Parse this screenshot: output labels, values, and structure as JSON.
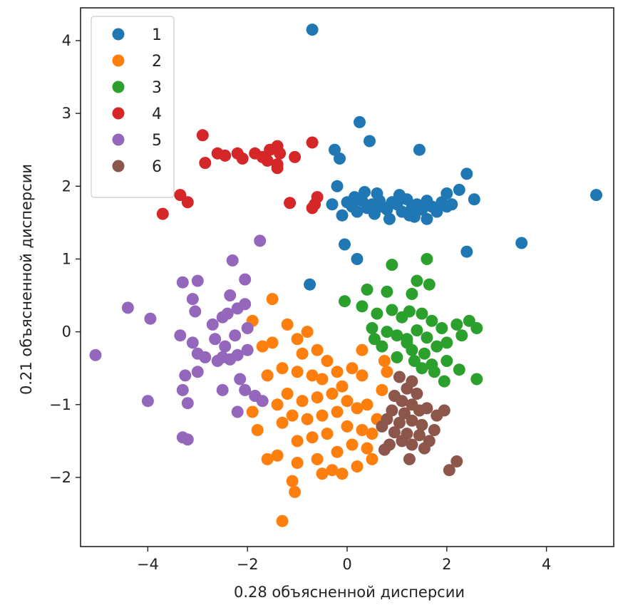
{
  "chart_data": {
    "type": "scatter",
    "title": "",
    "xlabel": "0.28    объясненной дисперсии",
    "ylabel": "0.21    объясненной дисперсии",
    "xlim": [
      -5.35,
      5.35
    ],
    "ylim": [
      -2.95,
      4.45
    ],
    "x_ticks": [
      -4,
      -2,
      0,
      2,
      4
    ],
    "x_tick_labels": [
      "−4",
      "−2",
      "0",
      "2",
      "4"
    ],
    "y_ticks": [
      -2,
      -1,
      0,
      1,
      2,
      3,
      4
    ],
    "y_tick_labels": [
      "−2",
      "−1",
      "0",
      "1",
      "2",
      "3",
      "4"
    ],
    "grid": false,
    "legend_position": "top-left",
    "series": [
      {
        "name": "1",
        "color": "#1f77b4",
        "points": [
          [
            -0.7,
            4.15
          ],
          [
            0.25,
            2.88
          ],
          [
            0.45,
            2.62
          ],
          [
            1.45,
            2.5
          ],
          [
            -0.25,
            2.5
          ],
          [
            -0.15,
            2.38
          ],
          [
            2.4,
            2.17
          ],
          [
            -0.2,
            2.0
          ],
          [
            -0.3,
            1.75
          ],
          [
            0.0,
            1.78
          ],
          [
            0.1,
            1.72
          ],
          [
            0.2,
            1.65
          ],
          [
            0.3,
            1.8
          ],
          [
            0.4,
            1.7
          ],
          [
            0.5,
            1.75
          ],
          [
            0.6,
            1.9
          ],
          [
            0.7,
            1.72
          ],
          [
            0.8,
            1.68
          ],
          [
            0.9,
            1.78
          ],
          [
            1.0,
            1.75
          ],
          [
            1.1,
            1.65
          ],
          [
            1.2,
            1.82
          ],
          [
            1.3,
            1.7
          ],
          [
            1.4,
            1.75
          ],
          [
            1.5,
            1.68
          ],
          [
            1.6,
            1.8
          ],
          [
            1.7,
            1.72
          ],
          [
            1.8,
            1.65
          ],
          [
            1.9,
            1.78
          ],
          [
            2.0,
            1.9
          ],
          [
            2.1,
            1.75
          ],
          [
            0.15,
            1.85
          ],
          [
            0.55,
            1.62
          ],
          [
            1.35,
            1.58
          ],
          [
            1.05,
            1.88
          ],
          [
            2.25,
            1.95
          ],
          [
            2.55,
            1.82
          ],
          [
            2.0,
            1.72
          ],
          [
            -0.1,
            1.6
          ],
          [
            0.35,
            1.92
          ],
          [
            0.85,
            1.55
          ],
          [
            1.25,
            1.6
          ],
          [
            1.6,
            1.55
          ],
          [
            0.65,
            1.8
          ],
          [
            3.5,
            1.22
          ],
          [
            5.0,
            1.88
          ],
          [
            2.4,
            1.1
          ],
          [
            -0.05,
            1.2
          ],
          [
            0.2,
            1.0
          ],
          [
            -0.75,
            0.65
          ]
        ]
      },
      {
        "name": "2",
        "color": "#ff7f0e",
        "points": [
          [
            -1.5,
            0.45
          ],
          [
            -1.9,
            0.15
          ],
          [
            -1.2,
            0.1
          ],
          [
            -0.8,
            0.0
          ],
          [
            -1.0,
            -0.1
          ],
          [
            -1.5,
            -0.15
          ],
          [
            -1.7,
            -0.2
          ],
          [
            -0.6,
            -0.25
          ],
          [
            -0.4,
            -0.4
          ],
          [
            -1.3,
            -0.5
          ],
          [
            -1.0,
            -0.55
          ],
          [
            -0.7,
            -0.6
          ],
          [
            -0.5,
            -0.65
          ],
          [
            -0.2,
            -0.55
          ],
          [
            0.1,
            -0.5
          ],
          [
            0.3,
            -0.6
          ],
          [
            -0.1,
            -0.75
          ],
          [
            -0.3,
            -0.85
          ],
          [
            -0.6,
            -0.9
          ],
          [
            -0.9,
            -0.95
          ],
          [
            -1.2,
            -0.85
          ],
          [
            -1.4,
            -1.0
          ],
          [
            0.0,
            -0.95
          ],
          [
            0.2,
            -1.05
          ],
          [
            0.4,
            -1.0
          ],
          [
            -0.2,
            -1.1
          ],
          [
            -0.5,
            -1.15
          ],
          [
            -0.8,
            -1.2
          ],
          [
            -1.1,
            -1.15
          ],
          [
            -1.3,
            -1.25
          ],
          [
            0.0,
            -1.3
          ],
          [
            0.3,
            -1.35
          ],
          [
            0.6,
            -1.2
          ],
          [
            -0.4,
            -1.4
          ],
          [
            -0.7,
            -1.45
          ],
          [
            -1.0,
            -1.5
          ],
          [
            0.1,
            -1.55
          ],
          [
            0.4,
            -1.6
          ],
          [
            -0.2,
            -1.65
          ],
          [
            -0.6,
            -1.75
          ],
          [
            -1.0,
            -1.8
          ],
          [
            -1.6,
            -1.75
          ],
          [
            -1.4,
            -1.7
          ],
          [
            -0.3,
            -1.9
          ],
          [
            0.2,
            -1.85
          ],
          [
            -0.1,
            -1.95
          ],
          [
            0.5,
            -1.75
          ],
          [
            -1.8,
            -1.35
          ],
          [
            -1.9,
            -1.1
          ],
          [
            -0.5,
            -1.95
          ],
          [
            -1.1,
            -2.05
          ],
          [
            -1.05,
            -2.2
          ],
          [
            -1.3,
            -2.6
          ],
          [
            0.8,
            -0.55
          ],
          [
            0.7,
            -0.8
          ],
          [
            0.5,
            -1.4
          ],
          [
            0.75,
            -0.4
          ],
          [
            0.3,
            -0.25
          ],
          [
            -0.9,
            -0.3
          ],
          [
            -1.6,
            -0.6
          ]
        ]
      },
      {
        "name": "3",
        "color": "#2ca02c",
        "points": [
          [
            1.6,
            1.0
          ],
          [
            0.9,
            0.92
          ],
          [
            1.4,
            0.7
          ],
          [
            0.4,
            0.58
          ],
          [
            0.8,
            0.55
          ],
          [
            1.3,
            0.52
          ],
          [
            1.65,
            0.65
          ],
          [
            -0.05,
            0.42
          ],
          [
            0.3,
            0.35
          ],
          [
            0.6,
            0.25
          ],
          [
            0.9,
            0.3
          ],
          [
            1.1,
            0.2
          ],
          [
            1.25,
            0.28
          ],
          [
            1.5,
            0.25
          ],
          [
            1.7,
            0.15
          ],
          [
            2.2,
            0.1
          ],
          [
            2.45,
            0.15
          ],
          [
            0.5,
            0.05
          ],
          [
            0.8,
            0.0
          ],
          [
            1.0,
            -0.05
          ],
          [
            1.2,
            -0.1
          ],
          [
            1.4,
            0.02
          ],
          [
            1.6,
            -0.08
          ],
          [
            1.9,
            0.05
          ],
          [
            2.0,
            -0.15
          ],
          [
            2.3,
            -0.05
          ],
          [
            2.6,
            0.05
          ],
          [
            0.7,
            -0.2
          ],
          [
            1.3,
            -0.25
          ],
          [
            1.55,
            -0.3
          ],
          [
            1.8,
            -0.2
          ],
          [
            1.0,
            -0.35
          ],
          [
            1.35,
            -0.4
          ],
          [
            1.7,
            -0.45
          ],
          [
            1.5,
            -0.5
          ],
          [
            1.75,
            -0.55
          ],
          [
            2.0,
            -0.4
          ],
          [
            2.25,
            -0.52
          ],
          [
            1.95,
            -0.68
          ],
          [
            2.6,
            -0.65
          ],
          [
            1.2,
            -0.15
          ],
          [
            0.55,
            -0.1
          ]
        ]
      },
      {
        "name": "4",
        "color": "#d62728",
        "points": [
          [
            -2.9,
            2.7
          ],
          [
            -0.7,
            2.6
          ],
          [
            -2.6,
            2.45
          ],
          [
            -2.45,
            2.42
          ],
          [
            -2.2,
            2.45
          ],
          [
            -2.1,
            2.38
          ],
          [
            -1.85,
            2.45
          ],
          [
            -1.7,
            2.4
          ],
          [
            -1.55,
            2.5
          ],
          [
            -1.4,
            2.55
          ],
          [
            -1.35,
            2.45
          ],
          [
            -1.6,
            2.35
          ],
          [
            -1.4,
            2.3
          ],
          [
            -1.05,
            2.4
          ],
          [
            -2.85,
            2.32
          ],
          [
            -1.4,
            2.25
          ],
          [
            -3.35,
            1.88
          ],
          [
            -3.2,
            1.78
          ],
          [
            -0.6,
            1.85
          ],
          [
            -0.65,
            1.75
          ],
          [
            -1.15,
            1.77
          ],
          [
            -0.7,
            1.7
          ],
          [
            -3.7,
            1.62
          ]
        ]
      },
      {
        "name": "5",
        "color": "#9467bd",
        "points": [
          [
            -1.75,
            1.25
          ],
          [
            -2.3,
            0.98
          ],
          [
            -2.05,
            0.72
          ],
          [
            -3.3,
            0.68
          ],
          [
            -3.0,
            0.7
          ],
          [
            -2.35,
            0.5
          ],
          [
            -2.05,
            0.38
          ],
          [
            -3.1,
            0.45
          ],
          [
            -2.2,
            0.32
          ],
          [
            -2.4,
            0.25
          ],
          [
            -3.05,
            0.28
          ],
          [
            -4.4,
            0.33
          ],
          [
            -3.95,
            0.18
          ],
          [
            -2.5,
            0.2
          ],
          [
            -2.7,
            0.1
          ],
          [
            -2.0,
            0.05
          ],
          [
            -3.35,
            -0.05
          ],
          [
            -2.25,
            -0.05
          ],
          [
            -2.65,
            -0.1
          ],
          [
            -3.1,
            -0.15
          ],
          [
            -2.45,
            -0.2
          ],
          [
            -2.0,
            -0.25
          ],
          [
            -3.0,
            -0.3
          ],
          [
            -2.2,
            -0.32
          ],
          [
            -2.85,
            -0.35
          ],
          [
            -2.5,
            -0.35
          ],
          [
            -5.05,
            -0.32
          ],
          [
            -2.35,
            -0.38
          ],
          [
            -2.6,
            -0.4
          ],
          [
            -3.0,
            -0.55
          ],
          [
            -3.25,
            -0.6
          ],
          [
            -2.15,
            -0.65
          ],
          [
            -2.05,
            -0.8
          ],
          [
            -1.85,
            -0.88
          ],
          [
            -2.5,
            -0.8
          ],
          [
            -3.3,
            -0.8
          ],
          [
            -4.0,
            -0.95
          ],
          [
            -3.2,
            -0.98
          ],
          [
            -1.7,
            -0.95
          ],
          [
            -2.2,
            -1.1
          ],
          [
            -3.3,
            -1.45
          ],
          [
            -3.2,
            -1.48
          ]
        ]
      },
      {
        "name": "6",
        "color": "#8c564b",
        "points": [
          [
            1.05,
            -0.62
          ],
          [
            1.3,
            -0.68
          ],
          [
            1.2,
            -0.78
          ],
          [
            0.95,
            -0.88
          ],
          [
            1.4,
            -0.85
          ],
          [
            1.1,
            -0.95
          ],
          [
            1.3,
            -1.0
          ],
          [
            0.9,
            -1.08
          ],
          [
            1.15,
            -1.12
          ],
          [
            1.45,
            -1.08
          ],
          [
            1.6,
            -1.05
          ],
          [
            1.95,
            -1.08
          ],
          [
            1.8,
            -1.15
          ],
          [
            0.8,
            -1.2
          ],
          [
            1.05,
            -1.25
          ],
          [
            1.3,
            -1.22
          ],
          [
            1.5,
            -1.28
          ],
          [
            0.7,
            -1.3
          ],
          [
            0.95,
            -1.38
          ],
          [
            1.2,
            -1.4
          ],
          [
            1.45,
            -1.42
          ],
          [
            1.75,
            -1.35
          ],
          [
            1.65,
            -1.5
          ],
          [
            1.1,
            -1.5
          ],
          [
            1.3,
            -1.55
          ],
          [
            0.85,
            -1.55
          ],
          [
            0.75,
            -1.62
          ],
          [
            1.55,
            -1.6
          ],
          [
            1.25,
            -1.75
          ],
          [
            2.2,
            -1.78
          ],
          [
            2.05,
            -1.9
          ]
        ]
      }
    ]
  }
}
